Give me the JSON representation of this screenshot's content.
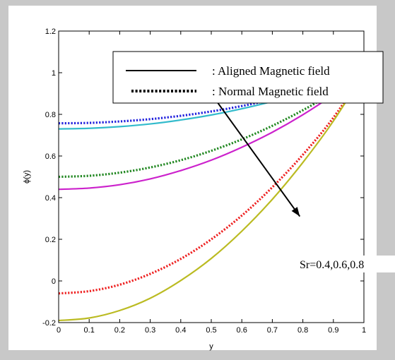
{
  "chart_data": {
    "type": "line",
    "title": "",
    "xlabel": "y",
    "ylabel": "ϕ(y)",
    "xlim": [
      0,
      1
    ],
    "ylim": [
      -0.2,
      1.2
    ],
    "grid": false,
    "x_ticks": [
      "0",
      "0.1",
      "0.2",
      "0.3",
      "0.4",
      "0.5",
      "0.6",
      "0.7",
      "0.8",
      "0.9",
      "1"
    ],
    "y_ticks": [
      "-0.2",
      "0",
      "0.2",
      "0.4",
      "0.6",
      "0.8",
      "1",
      "1.2"
    ],
    "legend": {
      "placement": "top-right",
      "entries": [
        {
          "label": ": Aligned Magnetic field",
          "style": "solid"
        },
        {
          "label": ": Normal Magnetic field",
          "style": "dotted"
        }
      ]
    },
    "annotation": {
      "text": "Sr=0.4,0.6,0.8",
      "arrow_from": [
        0.45,
        1.0
      ],
      "arrow_to": [
        0.79,
        0.31
      ]
    },
    "x": [
      0,
      0.1,
      0.2,
      0.3,
      0.4,
      0.5,
      0.6,
      0.7,
      0.8,
      0.9,
      1.0
    ],
    "series": [
      {
        "style": "dotted",
        "color": "#2222dd",
        "values": [
          0.757,
          0.759,
          0.766,
          0.777,
          0.793,
          0.814,
          0.84,
          0.871,
          0.907,
          0.95,
          1.0
        ]
      },
      {
        "style": "solid",
        "color": "#33bbcc",
        "values": [
          0.73,
          0.733,
          0.741,
          0.754,
          0.773,
          0.797,
          0.827,
          0.862,
          0.903,
          0.949,
          1.0
        ]
      },
      {
        "style": "dotted",
        "color": "#228822",
        "values": [
          0.5,
          0.505,
          0.52,
          0.545,
          0.58,
          0.625,
          0.68,
          0.745,
          0.82,
          0.905,
          1.0
        ]
      },
      {
        "style": "solid",
        "color": "#cc22cc",
        "values": [
          0.44,
          0.446,
          0.462,
          0.49,
          0.53,
          0.58,
          0.642,
          0.714,
          0.798,
          0.894,
          1.0
        ]
      },
      {
        "style": "dotted",
        "color": "#ee2222",
        "values": [
          -0.06,
          -0.049,
          -0.018,
          0.034,
          0.106,
          0.2,
          0.314,
          0.45,
          0.606,
          0.784,
          1.0
        ]
      },
      {
        "style": "solid",
        "color": "#bbbb22",
        "values": [
          -0.19,
          -0.178,
          -0.142,
          -0.083,
          0.002,
          0.108,
          0.239,
          0.392,
          0.569,
          0.768,
          1.0
        ]
      }
    ]
  }
}
